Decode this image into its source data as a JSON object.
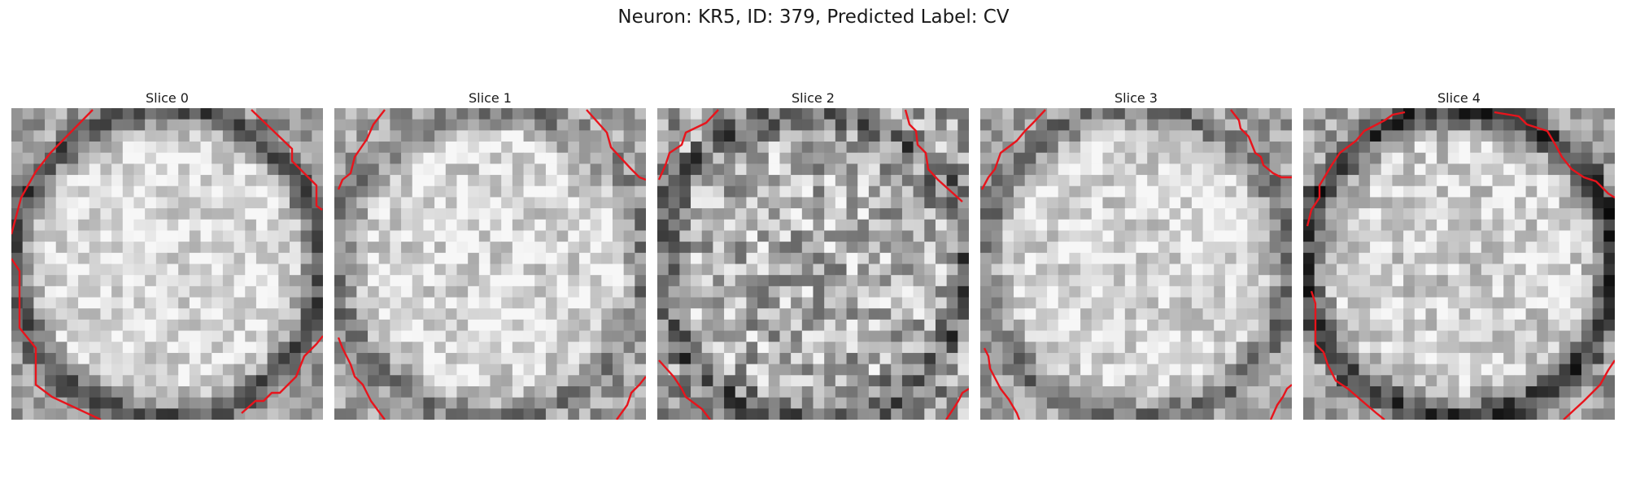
{
  "figure": {
    "title": "Neuron: KR5, ID: 379, Predicted Label: CV",
    "contour_color": "#e8141c",
    "slices": [
      {
        "title": "Slice 0",
        "center_brightness": 0.86,
        "ring_darkness": 0.55,
        "noise": 0.18
      },
      {
        "title": "Slice 1",
        "center_brightness": 0.85,
        "ring_darkness": 0.35,
        "noise": 0.2
      },
      {
        "title": "Slice 2",
        "center_brightness": 0.7,
        "ring_darkness": 0.3,
        "noise": 0.3
      },
      {
        "title": "Slice 3",
        "center_brightness": 0.84,
        "ring_darkness": 0.4,
        "noise": 0.18
      },
      {
        "title": "Slice 4",
        "center_brightness": 0.82,
        "ring_darkness": 0.6,
        "noise": 0.2
      }
    ]
  }
}
